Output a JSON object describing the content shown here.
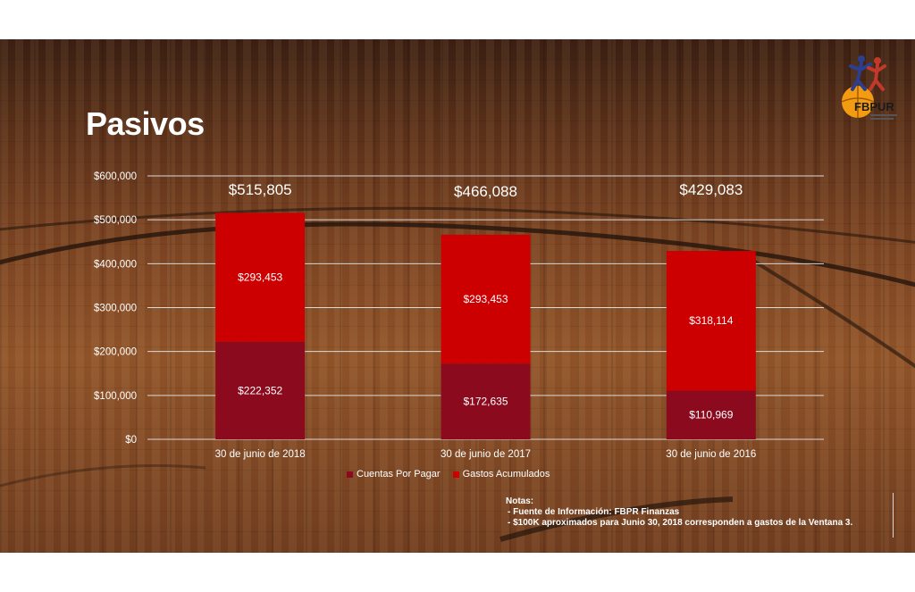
{
  "title": "Pasivos",
  "logo": {
    "text": "FBPUR",
    "primary_color": "#f39c12",
    "secondary_color": "#2c3e8f"
  },
  "colors": {
    "cuentas": "#8b0a1e",
    "gastos": "#cc0000",
    "grid": "#d9d9d9",
    "text": "#ffffff"
  },
  "chart_data": {
    "type": "bar",
    "stacked": true,
    "categories": [
      "30 de junio de 2018",
      "30 de junio de 2017",
      "30 de junio de 2016"
    ],
    "series": [
      {
        "name": "Cuentas Por Pagar",
        "values": [
          222352,
          172635,
          110969
        ],
        "labels": [
          "$222,352",
          "$172,635",
          "$110,969"
        ],
        "color": "#8b0a1e"
      },
      {
        "name": "Gastos Acumulados",
        "values": [
          293453,
          293453,
          318114
        ],
        "labels": [
          "$293,453",
          "$293,453",
          "$318,114"
        ],
        "color": "#cc0000"
      }
    ],
    "totals": [
      "$515,805",
      "$466,088",
      "$429,083"
    ],
    "ylim": [
      0,
      600000
    ],
    "yticks": [
      0,
      100000,
      200000,
      300000,
      400000,
      500000,
      600000
    ],
    "ytick_labels": [
      "$0",
      "$100,000",
      "$200,000",
      "$300,000",
      "$400,000",
      "$500,000",
      "$600,000"
    ],
    "grid": true,
    "legend": "bottom"
  },
  "notes": {
    "heading": "Notas:",
    "lines": [
      "- Fuente de Información: FBPR Finanzas",
      "- $100K aproximados para Junio 30, 2018 corresponden a gastos de la Ventana 3."
    ]
  }
}
